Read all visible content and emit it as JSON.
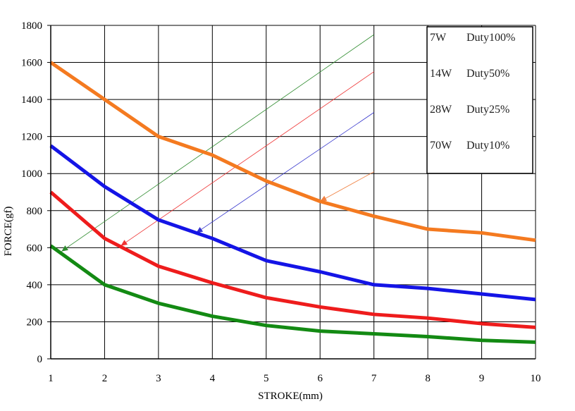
{
  "chart_data": {
    "type": "line",
    "xlabel": "STROKE(mm)",
    "ylabel": "FORCE(gf)",
    "xlim": [
      1,
      10
    ],
    "ylim": [
      0,
      1800
    ],
    "x_ticks": [
      "1",
      "2",
      "3",
      "4",
      "5",
      "6",
      "7",
      "8",
      "9",
      "10"
    ],
    "y_ticks": [
      "0",
      "200",
      "400",
      "600",
      "800",
      "1000",
      "1200",
      "1400",
      "1600",
      "1800"
    ],
    "grid": true,
    "legend_position": "top-right",
    "x": [
      1,
      2,
      3,
      4,
      5,
      6,
      7,
      8,
      9,
      10
    ],
    "series": [
      {
        "name": "7W",
        "duty": "Duty100%",
        "color": "#f47a20",
        "values": [
          1600,
          1400,
          1200,
          1100,
          960,
          850,
          770,
          700,
          680,
          640
        ]
      },
      {
        "name": "14W",
        "duty": "Duty50%",
        "color": "#1414e6",
        "values": [
          1150,
          930,
          750,
          650,
          530,
          470,
          400,
          380,
          350,
          320
        ]
      },
      {
        "name": "28W",
        "duty": "Duty25%",
        "color": "#ee1c1c",
        "values": [
          900,
          650,
          500,
          410,
          330,
          280,
          240,
          220,
          190,
          170
        ]
      },
      {
        "name": "70W",
        "duty": "Duty10%",
        "color": "#138a13",
        "values": [
          610,
          400,
          300,
          230,
          180,
          150,
          135,
          120,
          100,
          90
        ]
      }
    ],
    "guide_lines": [
      {
        "color": "#2e8b2e",
        "from": [
          1.2,
          580
        ],
        "to": [
          7.0,
          1750
        ]
      },
      {
        "color": "#ee3333",
        "from": [
          2.3,
          610
        ],
        "to": [
          7.0,
          1550
        ]
      },
      {
        "color": "#3333cc",
        "from": [
          3.7,
          680
        ],
        "to": [
          7.0,
          1330
        ]
      },
      {
        "color": "#f08040",
        "from": [
          6.0,
          850
        ],
        "to": [
          7.0,
          1010
        ]
      }
    ]
  }
}
